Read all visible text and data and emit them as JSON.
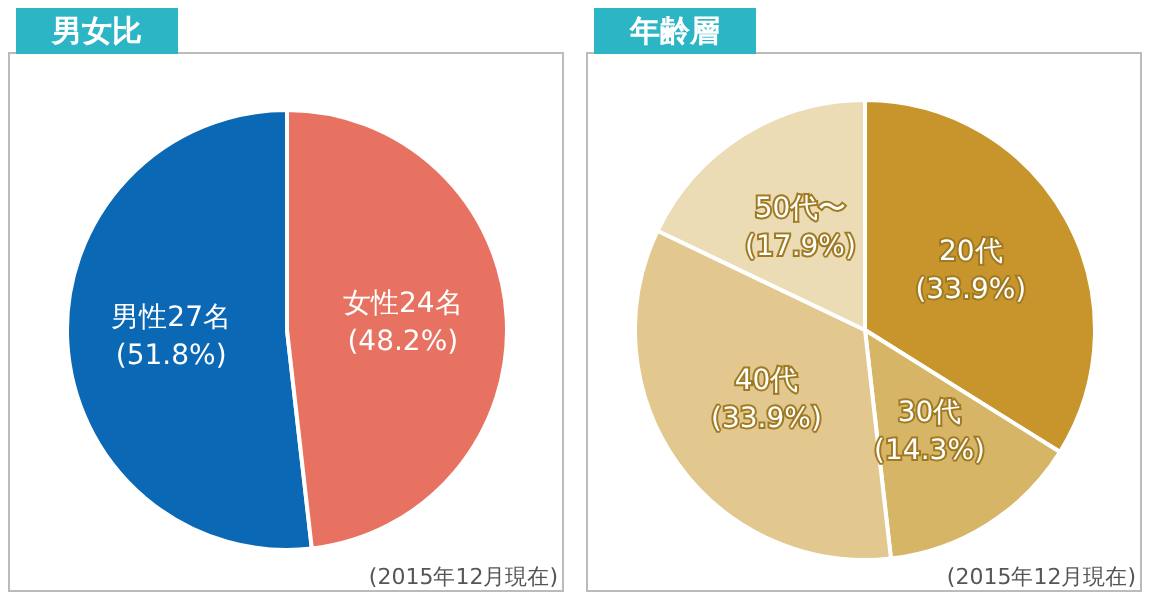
{
  "chart_data": [
    {
      "type": "pie",
      "title": "男女比",
      "categories": [
        "男性27名",
        "女性24名"
      ],
      "values": [
        51.8,
        48.2
      ],
      "colors": [
        "#0a68b4",
        "#e87262"
      ],
      "value_labels": [
        "(51.8%)",
        "(48.2%)"
      ],
      "legend": false,
      "annotations": [
        "(2015年12月現在)"
      ]
    },
    {
      "type": "pie",
      "title": "年齢層",
      "categories": [
        "20代",
        "30代",
        "40代",
        "50代〜"
      ],
      "values": [
        33.9,
        14.3,
        33.9,
        17.9
      ],
      "colors": [
        "#c8952c",
        "#d7b567",
        "#e2c88f",
        "#ecdcb5"
      ],
      "value_labels": [
        "(33.9%)",
        "(14.3%)",
        "(33.9%)",
        "(17.9%)"
      ],
      "legend": false,
      "annotations": [
        "(2015年12月現在)"
      ]
    }
  ]
}
